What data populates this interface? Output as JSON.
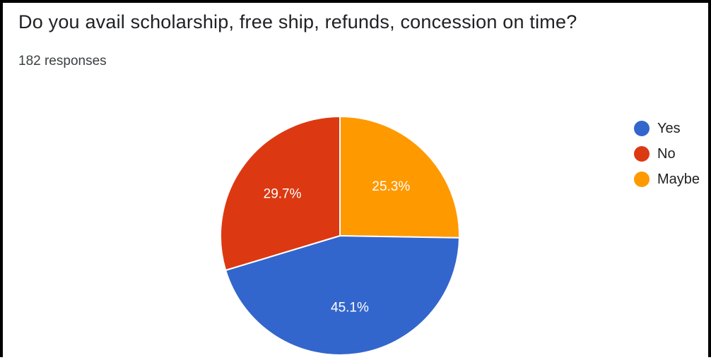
{
  "question": "Do you avail scholarship, free ship, refunds, concession on time?",
  "responses_label": "182 responses",
  "chart_data": {
    "type": "pie",
    "title": "Do you avail scholarship, free ship, refunds, concession on time?",
    "categories": [
      "Yes",
      "No",
      "Maybe"
    ],
    "values": [
      45.1,
      29.7,
      25.3
    ],
    "labels": [
      "45.1%",
      "29.7%",
      "25.3%"
    ],
    "colors": [
      "#3366cc",
      "#dc3912",
      "#ff9900"
    ],
    "legend_position": "right"
  }
}
